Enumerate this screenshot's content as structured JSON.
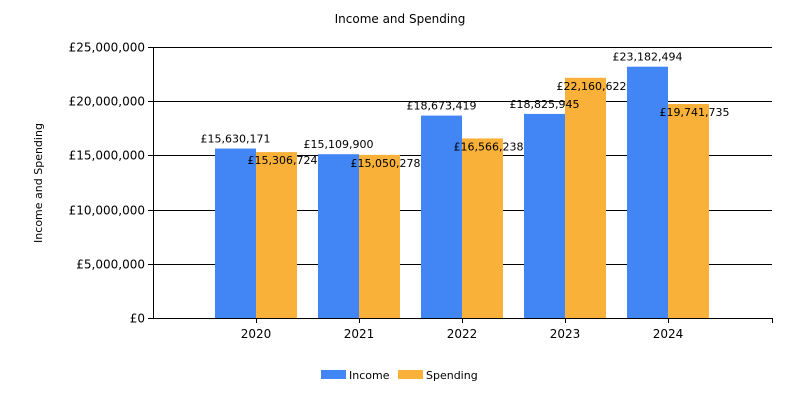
{
  "chart_data": {
    "type": "bar",
    "title": "Income and Spending",
    "xlabel": "",
    "ylabel": "Income and Spending",
    "categories": [
      "2020",
      "2021",
      "2022",
      "2023",
      "2024"
    ],
    "series": [
      {
        "name": "Income",
        "color": "#4285f4",
        "values": [
          15630171,
          15109900,
          18673419,
          18825945,
          23182494
        ],
        "labels": [
          "£15,630,171",
          "£15,109,900",
          "£18,673,419",
          "£18,825,945",
          "£23,182,494"
        ]
      },
      {
        "name": "Spending",
        "color": "#f9b13a",
        "values": [
          15306724,
          15050278,
          16566238,
          22160622,
          19741735
        ],
        "labels": [
          "£15,306,724",
          "£15,050,278",
          "£16,566,238",
          "£22,160,622",
          "£19,741,735"
        ]
      }
    ],
    "ylim": [
      0,
      25000000
    ],
    "yticks": [
      0,
      5000000,
      10000000,
      15000000,
      20000000,
      25000000
    ],
    "ytick_labels": [
      "£0",
      "£5,000,000",
      "£10,000,000",
      "£15,000,000",
      "£20,000,000",
      "£25,000,000"
    ],
    "grid": true,
    "legend": "bottom-center"
  }
}
